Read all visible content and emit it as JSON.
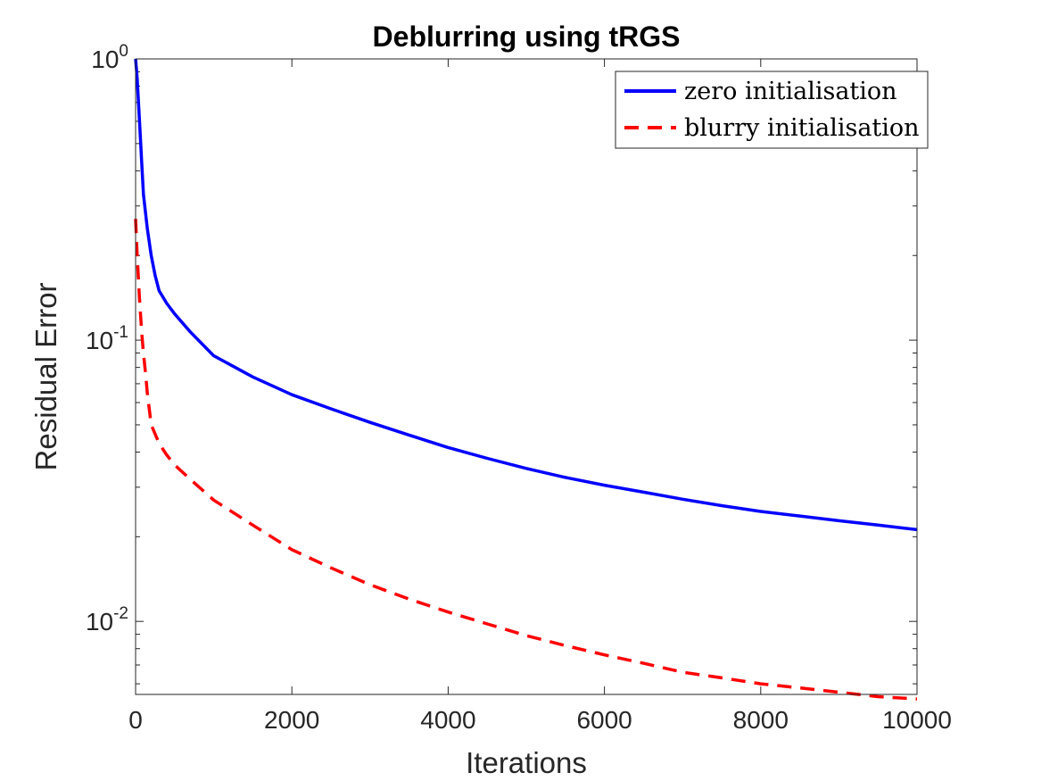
{
  "chart_data": {
    "type": "line",
    "title": "Deblurring using tRGS",
    "xlabel": "Iterations",
    "ylabel": "Residual Error",
    "xlim": [
      0,
      10000
    ],
    "ylim": [
      0.0055,
      1
    ],
    "yscale": "log",
    "grid": false,
    "legend_position": "top-right",
    "x_ticks": [
      {
        "value": 0,
        "label": "0"
      },
      {
        "value": 2000,
        "label": "2000"
      },
      {
        "value": 4000,
        "label": "4000"
      },
      {
        "value": 6000,
        "label": "6000"
      },
      {
        "value": 8000,
        "label": "8000"
      },
      {
        "value": 10000,
        "label": "10000"
      }
    ],
    "y_ticks": [
      {
        "value": 1,
        "base": "10",
        "exp": "0"
      },
      {
        "value": 0.1,
        "base": "10",
        "exp": "-1"
      },
      {
        "value": 0.01,
        "base": "10",
        "exp": "-2"
      }
    ],
    "series": [
      {
        "name": "zero initialisation",
        "color": "#0000ff",
        "style": "solid",
        "x": [
          0,
          20,
          50,
          80,
          100,
          150,
          200,
          250,
          300,
          400,
          500,
          700,
          1000,
          1500,
          2000,
          2500,
          3000,
          3500,
          4000,
          4500,
          5000,
          5500,
          6000,
          6500,
          7000,
          7500,
          8000,
          8500,
          9000,
          9500,
          10000
        ],
        "y": [
          1.0,
          0.85,
          0.6,
          0.42,
          0.33,
          0.25,
          0.2,
          0.17,
          0.15,
          0.135,
          0.124,
          0.107,
          0.088,
          0.074,
          0.064,
          0.057,
          0.051,
          0.046,
          0.0415,
          0.038,
          0.035,
          0.0325,
          0.0305,
          0.0288,
          0.0272,
          0.0258,
          0.0246,
          0.0237,
          0.0228,
          0.022,
          0.0212
        ]
      },
      {
        "name": "blurry initialisation",
        "color": "#ff0000",
        "style": "dashed",
        "x": [
          0,
          20,
          50,
          80,
          100,
          130,
          150,
          200,
          300,
          400,
          500,
          700,
          1000,
          1500,
          2000,
          2500,
          3000,
          3500,
          4000,
          4500,
          5000,
          5500,
          6000,
          6500,
          7000,
          7500,
          8000,
          8500,
          9000,
          9500,
          10000
        ],
        "y": [
          0.27,
          0.2,
          0.14,
          0.105,
          0.09,
          0.075,
          0.065,
          0.05,
          0.043,
          0.039,
          0.036,
          0.032,
          0.027,
          0.022,
          0.018,
          0.0155,
          0.0135,
          0.012,
          0.0108,
          0.0098,
          0.0089,
          0.0082,
          0.0076,
          0.0071,
          0.0066,
          0.0063,
          0.006,
          0.0058,
          0.0056,
          0.0054,
          0.0053
        ]
      }
    ]
  }
}
